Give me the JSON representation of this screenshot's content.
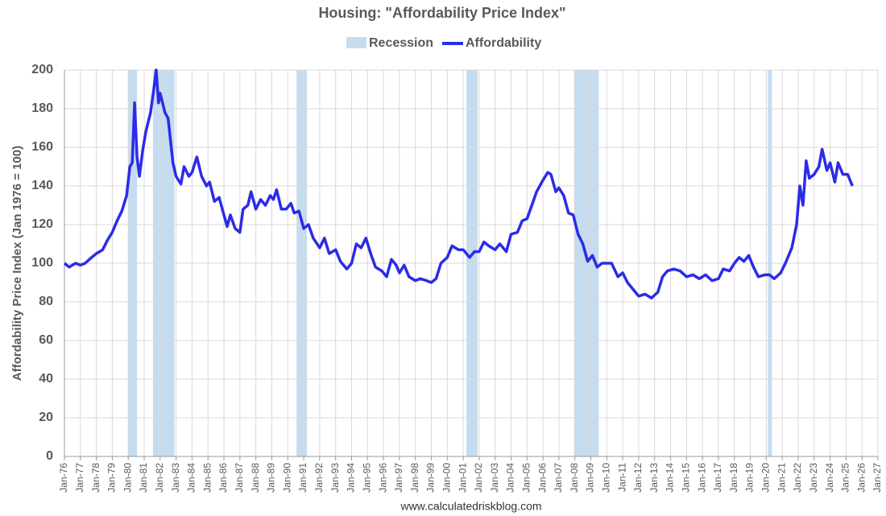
{
  "chart_data": {
    "type": "line",
    "title": "Housing: \"Affordability Price Index\"",
    "y_label": "Affordability Price Index (Jan 1976 = 100)",
    "source": "www.calculatedriskblog.com",
    "grid": true,
    "ylim": [
      0,
      200
    ],
    "yticks": [
      0,
      20,
      40,
      60,
      80,
      100,
      120,
      140,
      160,
      180,
      200
    ],
    "xlim": [
      1976,
      2027
    ],
    "xticks": [
      {
        "value": 1976,
        "label": "Jan-76"
      },
      {
        "value": 1977,
        "label": "Jan-77"
      },
      {
        "value": 1978,
        "label": "Jan-78"
      },
      {
        "value": 1979,
        "label": "Jan-79"
      },
      {
        "value": 1980,
        "label": "Jan-80"
      },
      {
        "value": 1981,
        "label": "Jan-81"
      },
      {
        "value": 1982,
        "label": "Jan-82"
      },
      {
        "value": 1983,
        "label": "Jan-83"
      },
      {
        "value": 1984,
        "label": "Jan-84"
      },
      {
        "value": 1985,
        "label": "Jan-85"
      },
      {
        "value": 1986,
        "label": "Jan-86"
      },
      {
        "value": 1987,
        "label": "Jan-87"
      },
      {
        "value": 1988,
        "label": "Jan-88"
      },
      {
        "value": 1989,
        "label": "Jan-89"
      },
      {
        "value": 1990,
        "label": "Jan-90"
      },
      {
        "value": 1991,
        "label": "Jan-91"
      },
      {
        "value": 1992,
        "label": "Jan-92"
      },
      {
        "value": 1993,
        "label": "Jan-93"
      },
      {
        "value": 1994,
        "label": "Jan-94"
      },
      {
        "value": 1995,
        "label": "Jan-95"
      },
      {
        "value": 1996,
        "label": "Jan-96"
      },
      {
        "value": 1997,
        "label": "Jan-97"
      },
      {
        "value": 1998,
        "label": "Jan-98"
      },
      {
        "value": 1999,
        "label": "Jan-99"
      },
      {
        "value": 2000,
        "label": "Jan-00"
      },
      {
        "value": 2001,
        "label": "Jan-01"
      },
      {
        "value": 2002,
        "label": "Jan-02"
      },
      {
        "value": 2003,
        "label": "Jan-03"
      },
      {
        "value": 2004,
        "label": "Jan-04"
      },
      {
        "value": 2005,
        "label": "Jan-05"
      },
      {
        "value": 2006,
        "label": "Jan-06"
      },
      {
        "value": 2007,
        "label": "Jan-07"
      },
      {
        "value": 2008,
        "label": "Jan-08"
      },
      {
        "value": 2009,
        "label": "Jan-09"
      },
      {
        "value": 2010,
        "label": "Jan-10"
      },
      {
        "value": 2011,
        "label": "Jan-11"
      },
      {
        "value": 2012,
        "label": "Jan-12"
      },
      {
        "value": 2013,
        "label": "Jan-13"
      },
      {
        "value": 2014,
        "label": "Jan-14"
      },
      {
        "value": 2015,
        "label": "Jan-15"
      },
      {
        "value": 2016,
        "label": "Jan-16"
      },
      {
        "value": 2017,
        "label": "Jan-17"
      },
      {
        "value": 2018,
        "label": "Jan-18"
      },
      {
        "value": 2019,
        "label": "Jan-19"
      },
      {
        "value": 2020,
        "label": "Jan-20"
      },
      {
        "value": 2021,
        "label": "Jan-21"
      },
      {
        "value": 2022,
        "label": "Jan-22"
      },
      {
        "value": 2023,
        "label": "Jan-23"
      },
      {
        "value": 2024,
        "label": "Jan-24"
      },
      {
        "value": 2025,
        "label": "Jan-25"
      },
      {
        "value": 2026,
        "label": "Jan-26"
      },
      {
        "value": 2027,
        "label": "Jan-27"
      }
    ],
    "recessions": {
      "name": "Recession",
      "color": "#c5dcf0",
      "ranges": [
        [
          1980.0,
          1980.55
        ],
        [
          1981.55,
          1982.9
        ],
        [
          1990.55,
          1991.2
        ],
        [
          2001.2,
          2001.9
        ],
        [
          2007.95,
          2009.5
        ],
        [
          2020.1,
          2020.35
        ]
      ]
    },
    "series": [
      {
        "name": "Affordability",
        "color": "#2b2be8",
        "x": [
          1976.0,
          1976.3,
          1976.7,
          1977.0,
          1977.3,
          1977.7,
          1978.0,
          1978.4,
          1978.7,
          1979.0,
          1979.3,
          1979.6,
          1979.9,
          1980.1,
          1980.25,
          1980.4,
          1980.55,
          1980.7,
          1980.9,
          1981.1,
          1981.4,
          1981.6,
          1981.75,
          1981.9,
          1982.0,
          1982.3,
          1982.5,
          1982.8,
          1983.0,
          1983.3,
          1983.5,
          1983.8,
          1984.0,
          1984.3,
          1984.6,
          1984.9,
          1985.1,
          1985.4,
          1985.7,
          1986.0,
          1986.2,
          1986.4,
          1986.7,
          1987.0,
          1987.2,
          1987.5,
          1987.7,
          1988.0,
          1988.3,
          1988.6,
          1988.9,
          1989.1,
          1989.3,
          1989.6,
          1989.9,
          1990.2,
          1990.4,
          1990.7,
          1991.0,
          1991.3,
          1991.6,
          1992.0,
          1992.3,
          1992.6,
          1993.0,
          1993.3,
          1993.7,
          1994.0,
          1994.3,
          1994.6,
          1994.9,
          1995.2,
          1995.5,
          1995.9,
          1996.2,
          1996.5,
          1996.8,
          1997.0,
          1997.3,
          1997.6,
          1998.0,
          1998.3,
          1998.7,
          1999.0,
          1999.3,
          1999.6,
          2000.0,
          2000.3,
          2000.7,
          2001.0,
          2001.4,
          2001.7,
          2002.0,
          2002.3,
          2002.6,
          2003.0,
          2003.3,
          2003.7,
          2004.0,
          2004.4,
          2004.7,
          2005.0,
          2005.3,
          2005.6,
          2006.0,
          2006.3,
          2006.5,
          2006.8,
          2007.0,
          2007.3,
          2007.6,
          2007.9,
          2008.2,
          2008.5,
          2008.8,
          2009.1,
          2009.4,
          2009.7,
          2010.0,
          2010.3,
          2010.7,
          2011.0,
          2011.3,
          2011.7,
          2012.0,
          2012.4,
          2012.8,
          2013.2,
          2013.5,
          2013.8,
          2014.2,
          2014.6,
          2015.0,
          2015.4,
          2015.8,
          2016.2,
          2016.6,
          2017.0,
          2017.3,
          2017.7,
          2018.0,
          2018.3,
          2018.6,
          2018.9,
          2019.2,
          2019.5,
          2019.9,
          2020.2,
          2020.5,
          2020.9,
          2021.2,
          2021.6,
          2021.9,
          2022.1,
          2022.3,
          2022.5,
          2022.7,
          2023.0,
          2023.3,
          2023.5,
          2023.8,
          2024.0,
          2024.3,
          2024.5,
          2024.8,
          2025.1,
          2025.4
        ],
        "values": [
          100,
          98,
          100,
          99,
          100,
          103,
          105,
          107,
          112,
          116,
          122,
          127,
          135,
          150,
          152,
          183,
          155,
          145,
          158,
          168,
          178,
          190,
          200,
          183,
          188,
          178,
          175,
          152,
          145,
          141,
          150,
          145,
          147,
          155,
          145,
          140,
          142,
          132,
          134,
          125,
          119,
          125,
          118,
          116,
          128,
          130,
          137,
          128,
          133,
          130,
          135,
          133,
          138,
          128,
          128,
          131,
          126,
          127,
          118,
          120,
          113,
          108,
          113,
          105,
          107,
          101,
          97,
          100,
          110,
          108,
          113,
          105,
          98,
          96,
          93,
          102,
          99,
          95,
          99,
          93,
          91,
          92,
          91,
          90,
          92,
          100,
          103,
          109,
          107,
          107,
          103,
          106,
          106,
          111,
          109,
          107,
          110,
          106,
          115,
          116,
          122,
          123,
          130,
          137,
          143,
          147,
          146,
          137,
          139,
          135,
          126,
          125,
          115,
          110,
          101,
          104,
          98,
          100,
          100,
          100,
          93,
          95,
          90,
          86,
          83,
          84,
          82,
          85,
          93,
          96,
          97,
          96,
          93,
          94,
          92,
          94,
          91,
          92,
          97,
          96,
          100,
          103,
          101,
          104,
          98,
          93,
          94,
          94,
          92,
          95,
          100,
          108,
          120,
          140,
          130,
          153,
          144,
          146,
          150,
          159,
          148,
          152,
          142,
          152,
          146,
          146,
          140
        ]
      }
    ]
  }
}
